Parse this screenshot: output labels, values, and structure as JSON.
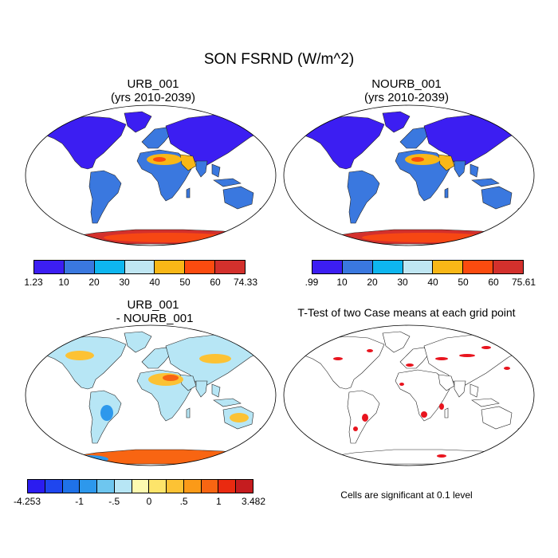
{
  "figure_title": "SON FSRND (W/m^2)",
  "panels": {
    "urb": {
      "title_line1": "URB_001",
      "title_line2": "(yrs 2010-2039)"
    },
    "nourb": {
      "title_line1": "NOURB_001",
      "title_line2": "(yrs 2010-2039)"
    },
    "diff": {
      "title_line1": "URB_001",
      "title_line2": " - NOURB_001"
    },
    "ttest": {
      "title": "T-Test of two Case means at each grid point",
      "note": "Cells are significant at 0.1 level"
    }
  },
  "colorbars": {
    "urb": {
      "labels": [
        "1.23",
        "10",
        "20",
        "30",
        "40",
        "50",
        "60",
        "74.33"
      ],
      "colors": [
        "#3c1ef2",
        "#3a78df",
        "#0eb6ef",
        "#bfe6f2",
        "#f8b717",
        "#fb4b0f",
        "#d3302c"
      ]
    },
    "nourb": {
      "labels": [
        ".99",
        "10",
        "20",
        "30",
        "40",
        "50",
        "60",
        "75.61"
      ],
      "colors": [
        "#3c1ef2",
        "#3a78df",
        "#0eb6ef",
        "#bfe6f2",
        "#f8b717",
        "#fb4b0f",
        "#d3302c"
      ]
    },
    "diff": {
      "labels": [
        "-4.253",
        "-1",
        "-.5",
        "0",
        ".5",
        "1",
        "3.482"
      ],
      "label_slots": [
        0,
        3,
        5,
        7,
        9,
        11,
        13
      ],
      "colors": [
        "#2b1cf0",
        "#1f46ee",
        "#1f72e8",
        "#2d98ec",
        "#6ec6ef",
        "#b7e6f5",
        "#fdfab0",
        "#fde46a",
        "#fcc234",
        "#fb9a18",
        "#f86512",
        "#ea2a10",
        "#c51c1f"
      ]
    }
  },
  "map_colors": {
    "ocean": "#ffffff",
    "coast": "#222222",
    "abs_tropics": "#3a78df",
    "abs_north": "#3c1ef2",
    "abs_desert": "#f8b717",
    "abs_hot": "#fb4b0f",
    "abs_antarctica": "#d3302c",
    "diff_land": "#b7e6f5",
    "diff_warm": "#fcc234",
    "diff_hot": "#f86512",
    "diff_cold": "#2d98ec",
    "sig": "#e8141e"
  }
}
